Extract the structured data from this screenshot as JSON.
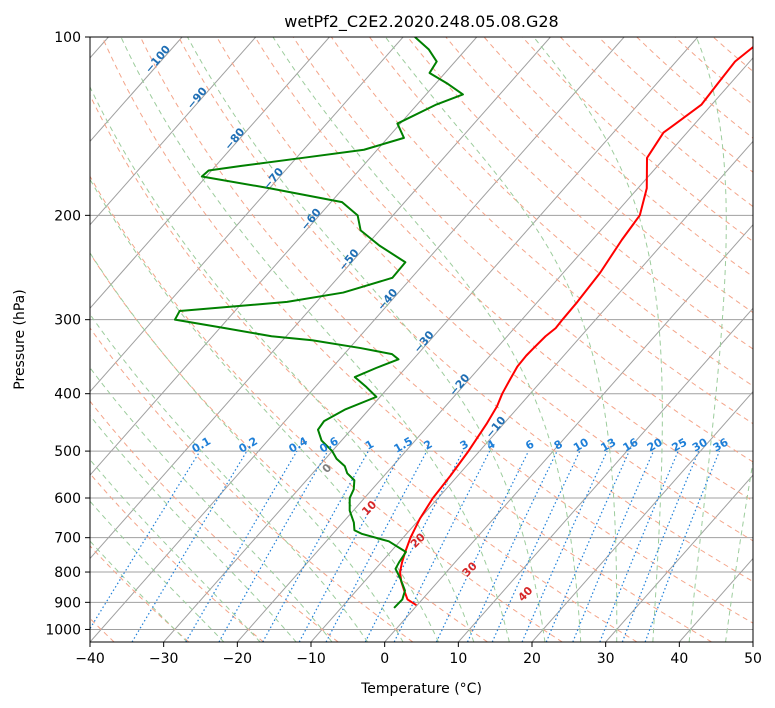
{
  "chart_data": {
    "type": "skew-t",
    "title": "wetPf2_C2E2.2020.248.05.08.G28",
    "xlabel": "Temperature (°C)",
    "ylabel": "Pressure (hPa)",
    "xlim": [
      -40,
      50
    ],
    "ylim": [
      1050,
      100
    ],
    "x_ticks": [
      "−40",
      "−30",
      "−20",
      "−10",
      "0",
      "10",
      "20",
      "30",
      "40",
      "50"
    ],
    "y_ticks": [
      "100",
      "200",
      "300",
      "400",
      "500",
      "600",
      "700",
      "800",
      "900",
      "1000"
    ],
    "y_scale": "log",
    "skew_per_log_decade": 71,
    "grid": true,
    "series": [
      {
        "color": "#ff0000",
        "p": [
          910,
          890,
          860,
          830,
          800,
          770,
          740,
          700,
          650,
          600,
          550,
          500,
          450,
          420,
          400,
          380,
          360,
          345,
          335,
          320,
          310,
          300,
          280,
          250,
          220,
          200,
          180,
          160,
          145,
          140,
          130,
          120,
          110,
          100
        ],
        "t": [
          -0.1,
          -2.0,
          -3.5,
          -5.0,
          -6.3,
          -7.2,
          -8.0,
          -9.0,
          -10.0,
          -10.7,
          -11.0,
          -11.5,
          -12.3,
          -13.0,
          -13.8,
          -14.4,
          -15.0,
          -15.1,
          -15.0,
          -14.8,
          -14.4,
          -14.5,
          -14.6,
          -15.0,
          -16.0,
          -16.5,
          -18.8,
          -22.4,
          -23.2,
          -22.6,
          -21.4,
          -21.7,
          -22.0,
          -20.8
        ]
      },
      {
        "color": "#008000",
        "p": [
          920,
          890,
          860,
          820,
          790,
          770,
          740,
          710,
          690,
          680,
          660,
          630,
          600,
          580,
          560,
          545,
          530,
          515,
          500,
          480,
          460,
          445,
          425,
          405,
          390,
          375,
          362,
          350,
          343,
          335,
          325,
          320,
          310,
          300,
          290,
          280,
          270,
          255,
          240,
          225,
          212,
          200,
          190,
          180,
          172,
          168,
          165,
          160,
          155,
          148,
          140,
          130,
          125,
          120,
          115,
          110,
          105,
          100
        ],
        "t": [
          -2.8,
          -2.7,
          -3.4,
          -5.5,
          -7.3,
          -7.6,
          -7.9,
          -11.5,
          -16.0,
          -17.5,
          -18.5,
          -20.5,
          -22.0,
          -22.5,
          -23.5,
          -25.3,
          -26.5,
          -28.5,
          -30.0,
          -32.7,
          -34.5,
          -34.7,
          -33.2,
          -30.5,
          -33.0,
          -35.8,
          -34.0,
          -32.0,
          -33.5,
          -38.5,
          -46.0,
          -52.0,
          -59.3,
          -67.1,
          -67.5,
          -54.0,
          -47.5,
          -42.6,
          -42.7,
          -48.2,
          -52.6,
          -54.8,
          -58.5,
          -70.0,
          -80.6,
          -80.4,
          -76.5,
          -69.2,
          -61.8,
          -57.8,
          -60.4,
          -57.4,
          -55.0,
          -58.3,
          -62.1,
          -62.5,
          -65.0,
          -68.4
        ]
      }
    ],
    "dry_adiabat_labels": [
      "−100",
      "−90",
      "−80",
      "−70",
      "−60",
      "−50",
      "−40",
      "−30",
      "−20",
      "−10"
    ],
    "mixing_ratio_labels": [
      "0.1",
      "0.2",
      "0.4",
      "0.6",
      "1",
      "1.5",
      "2",
      "3",
      "4",
      "6",
      "8",
      "10",
      "13",
      "16",
      "20",
      "25",
      "30",
      "36"
    ],
    "moist_adiabat_labels": [
      "0",
      "10",
      "20",
      "30",
      "40"
    ],
    "colors": {
      "temperature": "#ff0000",
      "dewpoint": "#008000",
      "isotherm": "#a0a0a0",
      "dry_adiabat": "#f4a58a",
      "moist_adiabat": "#9ccc9c",
      "mixing_ratio": "#1e7fd8",
      "dry_label": "#1f6fb5",
      "moist_label": "#d62728",
      "zero_label": "#808080"
    }
  }
}
